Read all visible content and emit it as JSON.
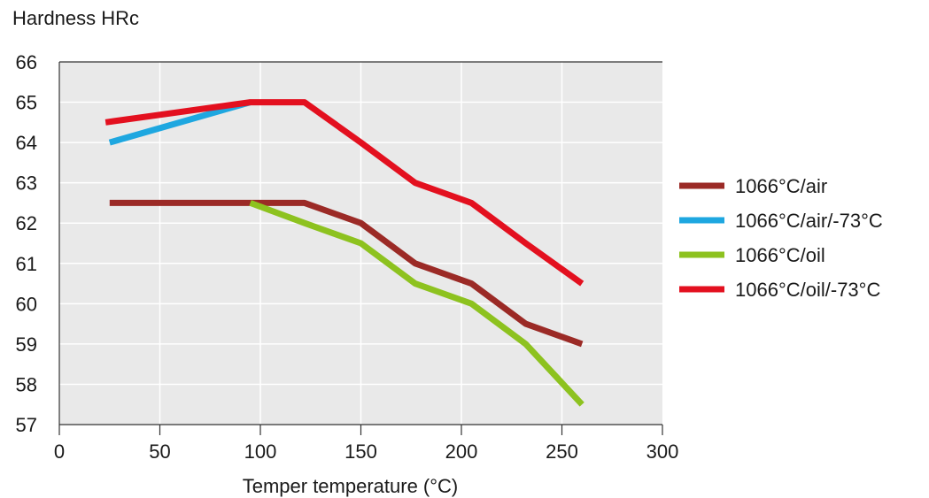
{
  "chart_data": {
    "type": "line",
    "ylabel": "Hardness HRc",
    "xlabel": "Temper temperature (°C)",
    "xlim": [
      0,
      300
    ],
    "ylim": [
      57,
      66
    ],
    "xticks": [
      0,
      50,
      100,
      150,
      200,
      250,
      300
    ],
    "yticks": [
      57,
      58,
      59,
      60,
      61,
      62,
      63,
      64,
      65,
      66
    ],
    "grid": true,
    "legend_position": "right",
    "series": [
      {
        "name": "1066°C/air",
        "color": "#9b2a26",
        "x": [
          25,
          95,
          122,
          150,
          177,
          205,
          232,
          260
        ],
        "y": [
          62.5,
          62.5,
          62.5,
          62.0,
          61.0,
          60.5,
          59.5,
          59.0
        ]
      },
      {
        "name": "1066°C/air/-73°C",
        "color": "#1ea7e0",
        "x": [
          25,
          95
        ],
        "y": [
          64.0,
          65.0
        ]
      },
      {
        "name": "1066°C/oil",
        "color": "#8dc21f",
        "x": [
          95,
          122,
          150,
          177,
          205,
          232,
          260
        ],
        "y": [
          62.5,
          62.0,
          61.5,
          60.5,
          60.0,
          59.0,
          57.5
        ]
      },
      {
        "name": "1066°C/oil/-73°C",
        "color": "#e3101f",
        "x": [
          23,
          95,
          122,
          150,
          177,
          205,
          232,
          260
        ],
        "y": [
          64.5,
          65.0,
          65.0,
          64.0,
          63.0,
          62.5,
          61.5,
          60.5
        ]
      }
    ]
  }
}
